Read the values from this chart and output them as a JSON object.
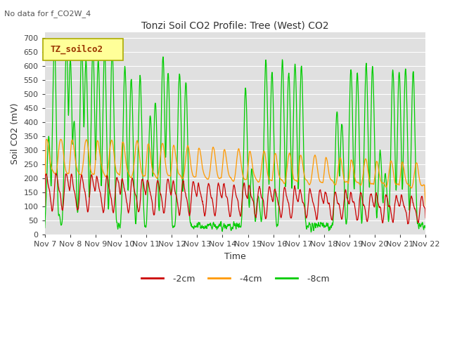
{
  "title": "Tonzi Soil CO2 Profile: Tree (West) CO2",
  "subtitle": "No data for f_CO2W_4",
  "ylabel": "Soil CO2 (mV)",
  "xlabel": "Time",
  "legend_label": "TZ_soilco2",
  "ylim": [
    0,
    720
  ],
  "yticks": [
    0,
    50,
    100,
    150,
    200,
    250,
    300,
    350,
    400,
    450,
    500,
    550,
    600,
    650,
    700
  ],
  "xtick_labels": [
    "Nov 7",
    "Nov 8",
    "Nov 9",
    "Nov 10",
    "Nov 11",
    "Nov 12",
    "Nov 13",
    "Nov 14",
    "Nov 15",
    "Nov 16",
    "Nov 17",
    "Nov 18",
    "Nov 19",
    "Nov 20",
    "Nov 21",
    "Nov 22"
  ],
  "line_2cm_color": "#cc0000",
  "line_4cm_color": "#ff9900",
  "line_8cm_color": "#00cc00",
  "bg_color": "#e0e0e0",
  "legend_box_facecolor": "#ffff99",
  "legend_box_edgecolor": "#aaaa00",
  "legend_label_color": "#993300",
  "fig_width": 6.4,
  "fig_height": 4.8,
  "dpi": 100
}
